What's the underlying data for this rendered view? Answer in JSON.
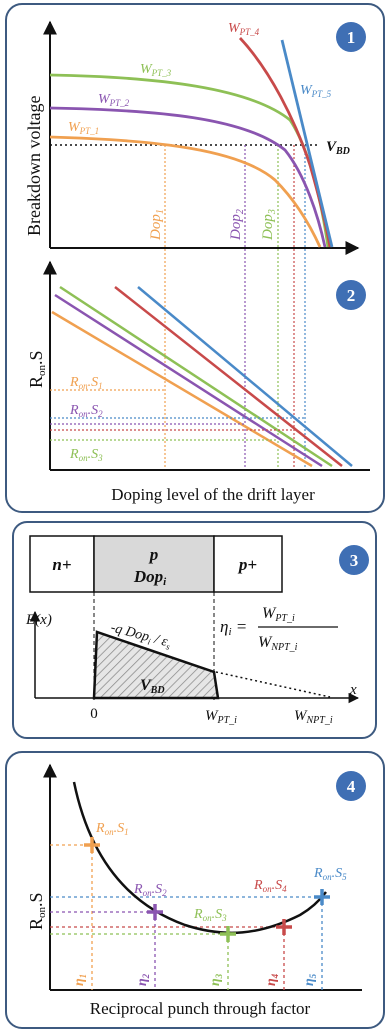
{
  "colors": {
    "frame": "#3d5a80",
    "badge": "#3f6fb4",
    "orange": "#f0a050",
    "purple": "#8a55b0",
    "green": "#8ec056",
    "red": "#c84a4a",
    "blue": "#4a8ac8",
    "black": "#111111",
    "gray_fill": "#d9d9d9"
  },
  "panel1": {
    "badge": "1",
    "ylabel": "Breakdown voltage",
    "curves": [
      {
        "name_main": "W",
        "name_sub": "PT_1",
        "color": "orange"
      },
      {
        "name_main": "W",
        "name_sub": "PT_2",
        "color": "purple"
      },
      {
        "name_main": "W",
        "name_sub": "PT_3",
        "color": "green"
      },
      {
        "name_main": "W",
        "name_sub": "PT_4",
        "color": "red"
      },
      {
        "name_main": "W",
        "name_sub": "PT_5",
        "color": "blue"
      }
    ],
    "vbd_main": "V",
    "vbd_sub": "BD",
    "dop": [
      {
        "main": "Dop",
        "sub": "1",
        "color": "orange"
      },
      {
        "main": "Dop",
        "sub": "2",
        "color": "purple"
      },
      {
        "main": "Dop",
        "sub": "3",
        "color": "green"
      }
    ]
  },
  "panel2": {
    "badge": "2",
    "ylabel_main": "R",
    "ylabel_sub": "on",
    "ylabel_tail": ".S",
    "labels": [
      {
        "main": "R",
        "sub": "on",
        "tail": ".S",
        "idx": "1",
        "color": "orange"
      },
      {
        "main": "R",
        "sub": "on",
        "tail": ".S",
        "idx": "2",
        "color": "purple"
      },
      {
        "main": "R",
        "sub": "on",
        "tail": ".S",
        "idx": "3",
        "color": "green"
      }
    ],
    "xlabel": "Doping level of the drift layer"
  },
  "panel3": {
    "badge": "3",
    "region_n": "n+",
    "region_p": "p",
    "region_dop_main": "Dop",
    "region_dop_sub": "i",
    "region_pp": "p+",
    "ex": "E(x)",
    "slope_pre": "-q Dop",
    "slope_sub": "i",
    "slope_mid": " / ε",
    "slope_sub2": "s",
    "eta": "η",
    "eta_sub": "i",
    "eta_eq": " = ",
    "num_main": "W",
    "num_sub": "PT_i",
    "den_main": "W",
    "den_sub": "NPT_i",
    "vbd_main": "V",
    "vbd_sub": "BD",
    "x": "x",
    "zero": "0",
    "wpt_main": "W",
    "wpt_sub": "PT_i",
    "wnpt_main": "W",
    "wnpt_sub": "NPT_i"
  },
  "panel4": {
    "badge": "4",
    "ylabel_main": "R",
    "ylabel_sub": "on",
    "ylabel_tail": ".S",
    "points": [
      {
        "main": "R",
        "sub": "on",
        "tail": ".S",
        "idx": "1",
        "eta": "η",
        "eta_sub": "1",
        "color": "orange"
      },
      {
        "main": "R",
        "sub": "on",
        "tail": ".S",
        "idx": "2",
        "eta": "η",
        "eta_sub": "2",
        "color": "purple"
      },
      {
        "main": "R",
        "sub": "on",
        "tail": ".S",
        "idx": "3",
        "eta": "η",
        "eta_sub": "3",
        "color": "green"
      },
      {
        "main": "R",
        "sub": "on",
        "tail": ".S",
        "idx": "4",
        "eta": "η",
        "eta_sub": "4",
        "color": "red"
      },
      {
        "main": "R",
        "sub": "on",
        "tail": ".S",
        "idx": "5",
        "eta": "η",
        "eta_sub": "5",
        "color": "blue"
      }
    ],
    "xlabel": "Reciprocal punch through factor"
  }
}
